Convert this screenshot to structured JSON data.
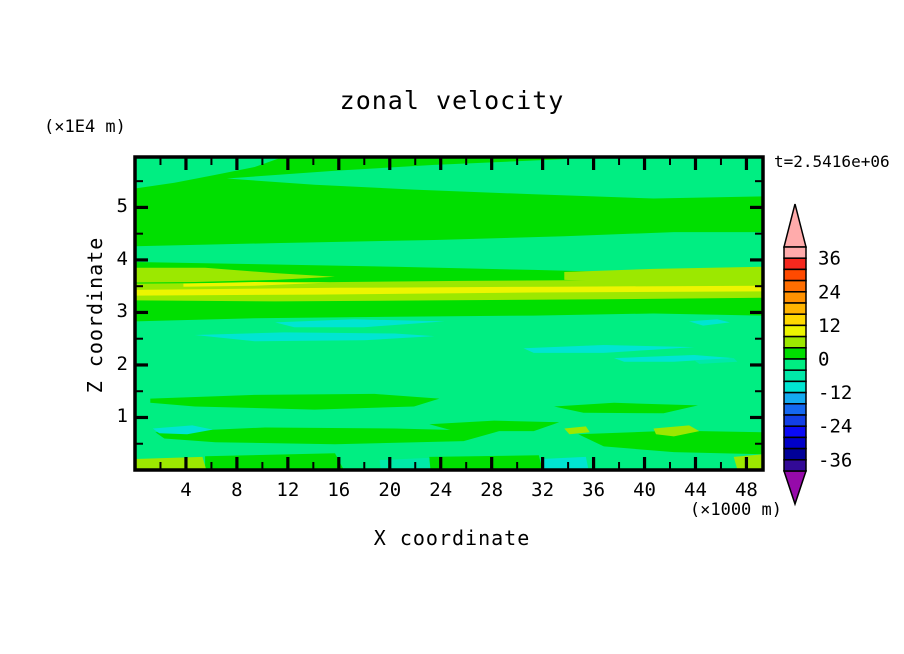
{
  "chart_data": {
    "type": "filled-contour",
    "title": "zonal velocity",
    "time_annotation": "t=2.5416e+06",
    "x_axis": {
      "label": "X coordinate",
      "unit": "(×1000 m)",
      "range": [
        0,
        49.3
      ],
      "major_ticks": [
        4,
        8,
        12,
        16,
        20,
        24,
        28,
        32,
        36,
        40,
        44,
        48
      ],
      "minor_ticks": [
        2,
        6,
        10,
        14,
        18,
        22,
        26,
        30,
        34,
        38,
        42,
        46
      ]
    },
    "z_axis": {
      "label": "Z coordinate",
      "unit": "(×1E4 m)",
      "range": [
        0,
        5.96
      ],
      "major_ticks": [
        1,
        2,
        3,
        4,
        5
      ],
      "minor_ticks": [
        0.5,
        1.5,
        2.5,
        3.5,
        4.5,
        5.5
      ]
    },
    "levels": {
      "contour_interval": 4,
      "min": -40,
      "max": 40,
      "colorbar_labeled_values": [
        36,
        24,
        12,
        0,
        -12,
        -24,
        -36
      ]
    },
    "colorbar": {
      "above_range_arrow_color": "#FFABAB",
      "below_range_arrow_color": "#960AAA",
      "segments": [
        {
          "range": [
            36,
            40
          ],
          "color": "#FFABAB"
        },
        {
          "range": [
            32,
            36
          ],
          "color": "#F5281E"
        },
        {
          "range": [
            28,
            32
          ],
          "color": "#FF4A00"
        },
        {
          "range": [
            24,
            28
          ],
          "color": "#FF6E00"
        },
        {
          "range": [
            20,
            24
          ],
          "color": "#FF9100"
        },
        {
          "range": [
            16,
            20
          ],
          "color": "#FFB400"
        },
        {
          "range": [
            12,
            16
          ],
          "color": "#FFD800"
        },
        {
          "range": [
            8,
            12
          ],
          "color": "#EDF500"
        },
        {
          "range": [
            4,
            8
          ],
          "color": "#9CE800"
        },
        {
          "range": [
            0,
            4
          ],
          "color": "#00DF00"
        },
        {
          "range": [
            -4,
            0
          ],
          "color": "#00EE82"
        },
        {
          "range": [
            -8,
            -4
          ],
          "color": "#00E9A8"
        },
        {
          "range": [
            -12,
            -8
          ],
          "color": "#00E5D2"
        },
        {
          "range": [
            -16,
            -12
          ],
          "color": "#14AAF0"
        },
        {
          "range": [
            -20,
            -16
          ],
          "color": "#1468F0"
        },
        {
          "range": [
            -24,
            -20
          ],
          "color": "#123FE6"
        },
        {
          "range": [
            -28,
            -24
          ],
          "color": "#0A0AF5"
        },
        {
          "range": [
            -32,
            -28
          ],
          "color": "#0000C8"
        },
        {
          "range": [
            -36,
            -32
          ],
          "color": "#000098"
        },
        {
          "range": [
            -40,
            -36
          ],
          "color": "#320A96"
        }
      ]
    },
    "field_colors": {
      "green": "#00DF00",
      "mint": "#00EE82",
      "turq": "#00E9A8",
      "cyan": "#00E5D2",
      "chart": "#9CE800",
      "yellow": "#EDF500"
    },
    "field_levels": {
      "green": [
        0,
        4
      ],
      "mint": [
        -4,
        0
      ],
      "turq": [
        -8,
        -4
      ],
      "cyan": [
        -12,
        -8
      ],
      "chart": [
        4,
        8
      ],
      "yellow": [
        8,
        12
      ]
    },
    "background_level_key": "green",
    "regions": [
      {
        "name": "top-left-mint-wedge",
        "level_key": "mint",
        "points": [
          [
            0,
            5.96
          ],
          [
            11.6,
            5.96
          ],
          [
            9.4,
            5.77
          ],
          [
            6.3,
            5.62
          ],
          [
            3.1,
            5.47
          ],
          [
            0,
            5.36
          ]
        ]
      },
      {
        "name": "upper-mint-band",
        "level_key": "mint",
        "points": [
          [
            7.2,
            5.55
          ],
          [
            15.7,
            5.7
          ],
          [
            23.5,
            5.81
          ],
          [
            33.7,
            5.92
          ],
          [
            34.9,
            5.96
          ],
          [
            49.3,
            5.96
          ],
          [
            49.3,
            5.21
          ],
          [
            40.7,
            5.17
          ],
          [
            31.3,
            5.25
          ],
          [
            21.9,
            5.34
          ],
          [
            14.1,
            5.43
          ]
        ]
      },
      {
        "name": "z4-mint-band",
        "level_key": "mint",
        "points": [
          [
            0,
            4.26
          ],
          [
            11,
            4.32
          ],
          [
            23.5,
            4.38
          ],
          [
            33.7,
            4.45
          ],
          [
            42.3,
            4.53
          ],
          [
            49.3,
            4.53
          ],
          [
            49.3,
            3.81
          ],
          [
            40.7,
            3.75
          ],
          [
            31.3,
            3.81
          ],
          [
            20.4,
            3.87
          ],
          [
            9.4,
            3.92
          ],
          [
            0,
            3.96
          ]
        ]
      },
      {
        "name": "lower-mint-layer",
        "level_key": "mint",
        "points": [
          [
            0,
            2.83
          ],
          [
            9.4,
            2.89
          ],
          [
            20.4,
            2.92
          ],
          [
            31.3,
            2.94
          ],
          [
            40.7,
            2.98
          ],
          [
            49.3,
            2.94
          ],
          [
            49.3,
            0
          ],
          [
            0,
            0
          ]
        ]
      },
      {
        "name": "cyan-patch-upper-a",
        "level_key": "cyan",
        "points": [
          [
            11,
            2.81
          ],
          [
            17.2,
            2.87
          ],
          [
            24.3,
            2.83
          ],
          [
            18,
            2.72
          ],
          [
            12.5,
            2.72
          ]
        ]
      },
      {
        "name": "cyan-patch-upper-b",
        "level_key": "cyan",
        "points": [
          [
            4.7,
            2.57
          ],
          [
            11.7,
            2.62
          ],
          [
            20.4,
            2.6
          ],
          [
            23.5,
            2.55
          ],
          [
            18,
            2.47
          ],
          [
            9.4,
            2.45
          ]
        ]
      },
      {
        "name": "cyan-streak-right-a",
        "level_key": "cyan",
        "points": [
          [
            30.5,
            2.32
          ],
          [
            36.8,
            2.38
          ],
          [
            43.9,
            2.34
          ],
          [
            36.8,
            2.23
          ],
          [
            31.3,
            2.23
          ]
        ]
      },
      {
        "name": "cyan-streak-right-b",
        "level_key": "cyan",
        "points": [
          [
            37.6,
            2.13
          ],
          [
            43.9,
            2.19
          ],
          [
            47,
            2.13
          ],
          [
            42.3,
            2.06
          ],
          [
            38.4,
            2.06
          ]
        ]
      },
      {
        "name": "cyan-dash-right-edge",
        "level_key": "cyan",
        "points": [
          [
            43.5,
            2.83
          ],
          [
            45.7,
            2.87
          ],
          [
            46.7,
            2.81
          ],
          [
            44.6,
            2.75
          ]
        ]
      },
      {
        "name": "turq-dash-right",
        "level_key": "turq",
        "points": [
          [
            43.9,
            2.09
          ],
          [
            47,
            2.13
          ],
          [
            47.3,
            2.06
          ],
          [
            44.3,
            2.02
          ]
        ]
      },
      {
        "name": "green-patch-a",
        "level_key": "green",
        "points": [
          [
            1.2,
            1.36
          ],
          [
            9.4,
            1.43
          ],
          [
            18.8,
            1.45
          ],
          [
            23.9,
            1.36
          ],
          [
            21.9,
            1.21
          ],
          [
            14.1,
            1.15
          ],
          [
            4.7,
            1.21
          ],
          [
            1.2,
            1.28
          ]
        ]
      },
      {
        "name": "green-patch-b",
        "level_key": "green",
        "points": [
          [
            1.6,
            0.72
          ],
          [
            10.2,
            0.81
          ],
          [
            20.4,
            0.79
          ],
          [
            28.6,
            0.74
          ],
          [
            25.8,
            0.55
          ],
          [
            15.7,
            0.49
          ],
          [
            6.3,
            0.53
          ],
          [
            2.3,
            0.6
          ]
        ]
      },
      {
        "name": "green-patch-c",
        "level_key": "green",
        "points": [
          [
            23.1,
            0.87
          ],
          [
            28.2,
            0.94
          ],
          [
            33.3,
            0.91
          ],
          [
            31.3,
            0.74
          ],
          [
            25.1,
            0.74
          ]
        ]
      },
      {
        "name": "green-patch-d",
        "level_key": "green",
        "points": [
          [
            32.9,
            1.21
          ],
          [
            37.6,
            1.28
          ],
          [
            44.2,
            1.23
          ],
          [
            41.5,
            1.08
          ],
          [
            35.2,
            1.09
          ]
        ]
      },
      {
        "name": "green-patch-e",
        "level_key": "green",
        "points": [
          [
            34.8,
            0.68
          ],
          [
            42.3,
            0.75
          ],
          [
            49.3,
            0.72
          ],
          [
            49.3,
            0.3
          ],
          [
            42.3,
            0.34
          ],
          [
            36.8,
            0.45
          ]
        ]
      },
      {
        "name": "green-surface-left",
        "level_key": "green",
        "points": [
          [
            5.5,
            0.26
          ],
          [
            15.7,
            0.32
          ],
          [
            16.4,
            0
          ],
          [
            5.5,
            0
          ]
        ]
      },
      {
        "name": "green-surface-mid",
        "level_key": "green",
        "points": [
          [
            23.1,
            0.25
          ],
          [
            31.7,
            0.28
          ],
          [
            32,
            0
          ],
          [
            23.1,
            0
          ]
        ]
      },
      {
        "name": "jet-chartreuse-left",
        "level_key": "chart",
        "points": [
          [
            0,
            3.85
          ],
          [
            5.5,
            3.85
          ],
          [
            11,
            3.75
          ],
          [
            15.7,
            3.68
          ],
          [
            11,
            3.62
          ],
          [
            4.7,
            3.58
          ],
          [
            0,
            3.57
          ]
        ]
      },
      {
        "name": "jet-chartreuse-right",
        "level_key": "chart",
        "points": [
          [
            33.7,
            3.77
          ],
          [
            40.7,
            3.83
          ],
          [
            49.3,
            3.87
          ],
          [
            49.3,
            3.55
          ],
          [
            40.7,
            3.57
          ],
          [
            33.7,
            3.62
          ]
        ]
      },
      {
        "name": "jet-chartreuse-core",
        "level_key": "chart",
        "points": [
          [
            0,
            3.55
          ],
          [
            12.5,
            3.57
          ],
          [
            25.8,
            3.6
          ],
          [
            39.2,
            3.62
          ],
          [
            49.3,
            3.64
          ],
          [
            49.3,
            3.28
          ],
          [
            36.8,
            3.25
          ],
          [
            23.5,
            3.23
          ],
          [
            11,
            3.21
          ],
          [
            0,
            3.23
          ]
        ]
      },
      {
        "name": "jet-yellow-line",
        "level_key": "yellow",
        "points": [
          [
            0,
            3.43
          ],
          [
            15.7,
            3.47
          ],
          [
            32.9,
            3.49
          ],
          [
            49.3,
            3.51
          ],
          [
            49.3,
            3.4
          ],
          [
            31.3,
            3.38
          ],
          [
            14.1,
            3.34
          ],
          [
            0,
            3.32
          ]
        ]
      },
      {
        "name": "jet-yellow-streak",
        "level_key": "yellow",
        "points": [
          [
            3.8,
            3.55
          ],
          [
            9.4,
            3.58
          ],
          [
            15.3,
            3.57
          ],
          [
            9.4,
            3.51
          ],
          [
            3.8,
            3.49
          ]
        ]
      },
      {
        "name": "cyan-patch-lower-left",
        "level_key": "cyan",
        "points": [
          [
            1.4,
            0.79
          ],
          [
            4.5,
            0.85
          ],
          [
            6.1,
            0.77
          ],
          [
            4.1,
            0.68
          ],
          [
            1.9,
            0.7
          ]
        ]
      },
      {
        "name": "chartreuse-spot-a",
        "level_key": "chart",
        "points": [
          [
            40.7,
            0.79
          ],
          [
            43.5,
            0.85
          ],
          [
            44.3,
            0.74
          ],
          [
            42.3,
            0.64
          ],
          [
            40.9,
            0.68
          ]
        ]
      },
      {
        "name": "chartreuse-spot-b",
        "level_key": "chart",
        "points": [
          [
            33.7,
            0.79
          ],
          [
            35.4,
            0.83
          ],
          [
            35.7,
            0.72
          ],
          [
            34.1,
            0.68
          ]
        ]
      },
      {
        "name": "chartreuse-surface-left",
        "level_key": "chart",
        "points": [
          [
            0,
            0.21
          ],
          [
            5.3,
            0.25
          ],
          [
            5.6,
            0
          ],
          [
            0,
            0
          ]
        ]
      },
      {
        "name": "chartreuse-surface-right",
        "level_key": "chart",
        "points": [
          [
            47,
            0.25
          ],
          [
            49.3,
            0.3
          ],
          [
            49.3,
            0
          ],
          [
            47.3,
            0
          ]
        ]
      },
      {
        "name": "cyan-surface-strip",
        "level_key": "cyan",
        "points": [
          [
            31.9,
            0.21
          ],
          [
            35.4,
            0.25
          ],
          [
            35.6,
            0
          ],
          [
            32.1,
            0
          ]
        ]
      },
      {
        "name": "turq-surface-strip",
        "level_key": "turq",
        "points": [
          [
            19.2,
            0.19
          ],
          [
            23.1,
            0.23
          ],
          [
            23.2,
            0
          ],
          [
            19.3,
            0
          ]
        ]
      }
    ],
    "field_summary": [
      {
        "z_range": [
          5.3,
          6.0
        ],
        "u_range": [
          -4,
          4
        ],
        "note": "alternating weak layers near top"
      },
      {
        "z_range": [
          4.5,
          5.3
        ],
        "u_range": [
          0,
          4
        ],
        "note": "uniform layer"
      },
      {
        "z_range": [
          3.8,
          4.5
        ],
        "u_range": [
          -4,
          0
        ],
        "note": "weak band"
      },
      {
        "z_range": [
          3.2,
          3.8
        ],
        "u_range": [
          4,
          12
        ],
        "note": "jet band (chartreuse with yellow core)"
      },
      {
        "z_range": [
          1.0,
          3.0
        ],
        "u_range": [
          -12,
          4
        ],
        "note": "broad layer with cyan patches"
      },
      {
        "z_range": [
          0.0,
          1.0
        ],
        "u_range": [
          -12,
          12
        ],
        "note": "mixed surface layer with small patches"
      }
    ]
  }
}
